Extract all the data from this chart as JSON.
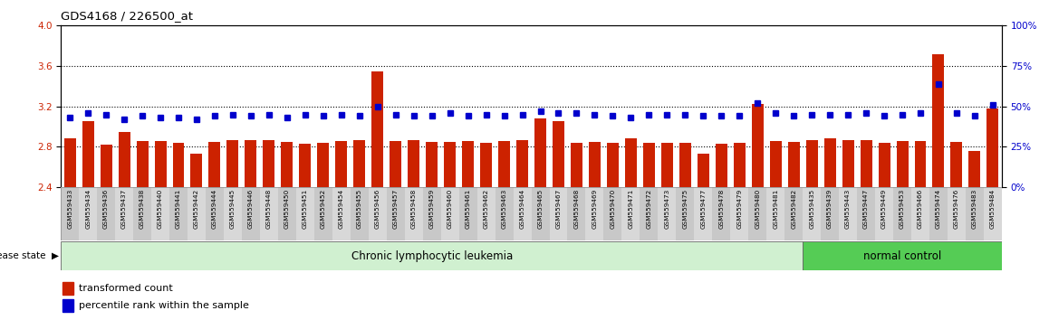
{
  "title": "GDS4168 / 226500_at",
  "samples": [
    "GSM559433",
    "GSM559434",
    "GSM559436",
    "GSM559437",
    "GSM559438",
    "GSM559440",
    "GSM559441",
    "GSM559442",
    "GSM559444",
    "GSM559445",
    "GSM559446",
    "GSM559448",
    "GSM559450",
    "GSM559451",
    "GSM559452",
    "GSM559454",
    "GSM559455",
    "GSM559456",
    "GSM559457",
    "GSM559458",
    "GSM559459",
    "GSM559460",
    "GSM559461",
    "GSM559462",
    "GSM559463",
    "GSM559464",
    "GSM559465",
    "GSM559467",
    "GSM559468",
    "GSM559469",
    "GSM559470",
    "GSM559471",
    "GSM559472",
    "GSM559473",
    "GSM559475",
    "GSM559477",
    "GSM559478",
    "GSM559479",
    "GSM559480",
    "GSM559481",
    "GSM559482",
    "GSM559435",
    "GSM559439",
    "GSM559443",
    "GSM559447",
    "GSM559449",
    "GSM559453",
    "GSM559466",
    "GSM559474",
    "GSM559476",
    "GSM559483",
    "GSM559484"
  ],
  "red_values": [
    2.88,
    3.05,
    2.82,
    2.95,
    2.86,
    2.86,
    2.84,
    2.73,
    2.85,
    2.87,
    2.87,
    2.87,
    2.85,
    2.83,
    2.84,
    2.86,
    2.87,
    3.55,
    2.86,
    2.87,
    2.85,
    2.85,
    2.86,
    2.84,
    2.86,
    2.87,
    3.08,
    3.05,
    2.84,
    2.85,
    2.84,
    2.88,
    2.84,
    2.84,
    2.84,
    2.73,
    2.83,
    2.84,
    3.22,
    2.86,
    2.85,
    2.87,
    2.88,
    2.87,
    2.87,
    2.84,
    2.86,
    2.86,
    3.72,
    2.85,
    2.76,
    3.18
  ],
  "blue_values": [
    43,
    46,
    45,
    42,
    44,
    43,
    43,
    42,
    44,
    45,
    44,
    45,
    43,
    45,
    44,
    45,
    44,
    50,
    45,
    44,
    44,
    46,
    44,
    45,
    44,
    45,
    47,
    46,
    46,
    45,
    44,
    43,
    45,
    45,
    45,
    44,
    44,
    44,
    52,
    46,
    44,
    45,
    45,
    45,
    46,
    44,
    45,
    46,
    64,
    46,
    44,
    51
  ],
  "group_labels": [
    "Chronic lymphocytic leukemia",
    "normal control"
  ],
  "group_sizes": [
    41,
    11
  ],
  "group_colors": [
    "#d0f0d0",
    "#55cc55"
  ],
  "ylim_left": [
    2.4,
    4.0
  ],
  "ylim_right": [
    0,
    100
  ],
  "yticks_left": [
    2.4,
    2.8,
    3.2,
    3.6,
    4.0
  ],
  "yticks_right": [
    0,
    25,
    50,
    75,
    100
  ],
  "ybaseline": 2.4,
  "bar_color": "#cc2200",
  "dot_color": "#0000cc",
  "legend_red": "transformed count",
  "legend_blue": "percentile rank within the sample"
}
